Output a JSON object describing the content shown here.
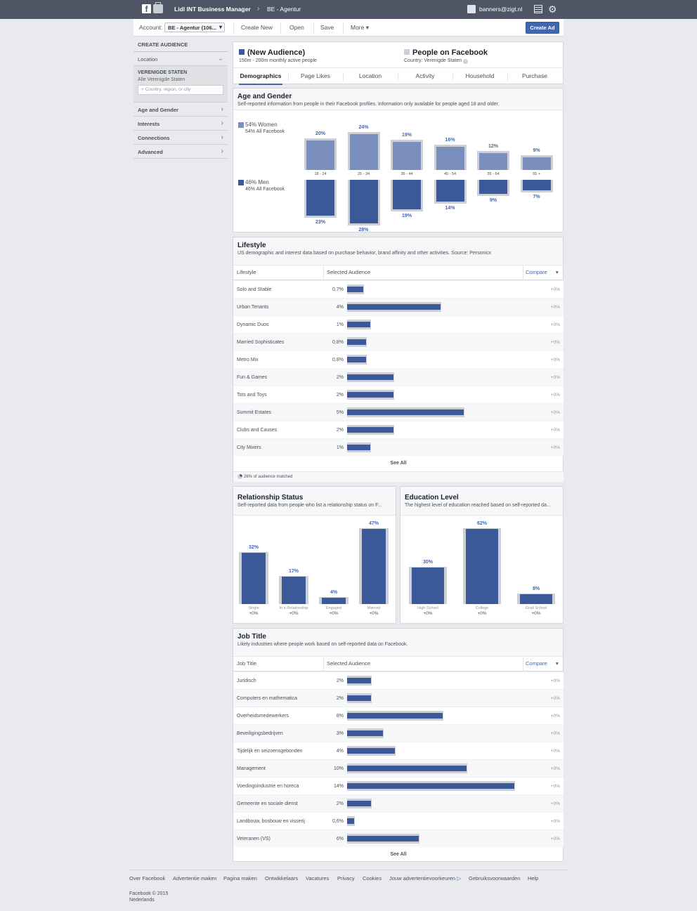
{
  "topbar": {
    "app_title": "Lidl INT Business Manager",
    "account": "BE - Agentur",
    "email": "banners@zigt.nl"
  },
  "toolbar": {
    "account_label": "Account:",
    "account_value": "BE - Agentur (106...",
    "create_new": "Create New",
    "open": "Open",
    "save": "Save",
    "more": "More ▾",
    "create_ad": "Create Ad"
  },
  "sidebar": {
    "header": "CREATE AUDIENCE",
    "location": "Location",
    "country": "VERENIGDE STATEN",
    "all_country": "Alle Verenigde Staten",
    "country_placeholder": "Country, region, or city",
    "age_gender": "Age and Gender",
    "interests": "Interests",
    "connections": "Connections",
    "advanced": "Advanced"
  },
  "header": {
    "audience_name": "(New Audience)",
    "audience_sub": "150m - 200m monthly active people",
    "compare_name": "People on Facebook",
    "compare_sub": "Country: Verenigde Staten",
    "tabs": [
      "Demographics",
      "Page Likes",
      "Location",
      "Activity",
      "Household",
      "Purchase"
    ]
  },
  "age_gender": {
    "title": "Age and Gender",
    "subtitle": "Self-reported information from people in their Facebook profiles. Information only available for people aged 18 and older.",
    "women_label": "54% Women",
    "women_sub": "54% All Facebook",
    "men_label": "46% Men",
    "men_sub": "46% All Facebook",
    "colors": {
      "women": "#7b8fbe",
      "men": "#3b5998",
      "compare": "#ccd0d5"
    },
    "chart_data": {
      "type": "bar",
      "categories": [
        "18 - 24",
        "25 - 34",
        "35 - 44",
        "45 - 54",
        "55 - 64",
        "65 +"
      ],
      "series": [
        {
          "name": "Women",
          "values": [
            20,
            24,
            19,
            16,
            12,
            9
          ],
          "labels": [
            "20%",
            "24%",
            "19%",
            "16%",
            "12%",
            "9%"
          ]
        },
        {
          "name": "Men",
          "values": [
            23,
            28,
            19,
            14,
            9,
            7
          ],
          "labels": [
            "23%",
            "28%",
            "19%",
            "14%",
            "9%",
            "7%"
          ]
        }
      ]
    }
  },
  "lifestyle": {
    "title": "Lifestyle",
    "subtitle": "US demographic and interest data based on purchase behavior, brand affinity and other activities. Source: Personicx",
    "col1": "Lifestyle",
    "col2": "Selected Audience",
    "col3": "Compare",
    "see_all": "See All",
    "matched": "26% of audience matched",
    "rows": [
      {
        "name": "Solo and Stable",
        "pct": "0,7%",
        "val": 0.7,
        "cmp": "+0%"
      },
      {
        "name": "Urban Tenants",
        "pct": "4%",
        "val": 4,
        "cmp": "+0%"
      },
      {
        "name": "Dynamic Duos",
        "pct": "1%",
        "val": 1,
        "cmp": "+0%"
      },
      {
        "name": "Married Sophisticates",
        "pct": "0,8%",
        "val": 0.8,
        "cmp": "+0%"
      },
      {
        "name": "Metro Mix",
        "pct": "0,8%",
        "val": 0.8,
        "cmp": "+0%"
      },
      {
        "name": "Fun & Games",
        "pct": "2%",
        "val": 2,
        "cmp": "+0%"
      },
      {
        "name": "Tots and Toys",
        "pct": "2%",
        "val": 2,
        "cmp": "+0%"
      },
      {
        "name": "Summit Estates",
        "pct": "5%",
        "val": 5,
        "cmp": "+0%"
      },
      {
        "name": "Clubs and Causes",
        "pct": "2%",
        "val": 2,
        "cmp": "+0%"
      },
      {
        "name": "City Mixers",
        "pct": "1%",
        "val": 1,
        "cmp": "+0%"
      }
    ]
  },
  "relationship": {
    "title": "Relationship Status",
    "subtitle": "Self-reported data from people who list a relationship status on F...",
    "chart_data": {
      "type": "bar",
      "categories": [
        "Single",
        "In a Relationship",
        "Engaged",
        "Married"
      ],
      "values": [
        32,
        17,
        4,
        47
      ],
      "labels": [
        "32%",
        "17%",
        "4%",
        "47%"
      ],
      "compare": [
        "+0%",
        "+0%",
        "+0%",
        "+0%"
      ]
    }
  },
  "education": {
    "title": "Education Level",
    "subtitle": "The highest level of education reached based on self-reported da...",
    "chart_data": {
      "type": "bar",
      "categories": [
        "High School",
        "College",
        "Grad School"
      ],
      "values": [
        30,
        62,
        8
      ],
      "labels": [
        "30%",
        "62%",
        "8%"
      ],
      "compare": [
        "+0%",
        "+0%",
        "+0%"
      ]
    }
  },
  "job": {
    "title": "Job Title",
    "subtitle": "Likely industries where people work based on self-reported data on Facebook.",
    "col1": "Job Title",
    "col2": "Selected Audience",
    "col3": "Compare",
    "see_all": "See All",
    "rows": [
      {
        "name": "Juridisch",
        "pct": "2%",
        "val": 2,
        "cmp": "+0%"
      },
      {
        "name": "Computers en mathematica",
        "pct": "2%",
        "val": 2,
        "cmp": "+0%"
      },
      {
        "name": "Overheidsmedewerkers",
        "pct": "8%",
        "val": 8,
        "cmp": "+0%"
      },
      {
        "name": "Beveiligingsbedrijven",
        "pct": "3%",
        "val": 3,
        "cmp": "+0%"
      },
      {
        "name": "Tijdelijk en seizoensgebonden",
        "pct": "4%",
        "val": 4,
        "cmp": "+0%"
      },
      {
        "name": "Management",
        "pct": "10%",
        "val": 10,
        "cmp": "+0%"
      },
      {
        "name": "Voedingsindustrie en horeca",
        "pct": "14%",
        "val": 14,
        "cmp": "+0%"
      },
      {
        "name": "Gemeente en sociale dienst",
        "pct": "2%",
        "val": 2,
        "cmp": "+0%"
      },
      {
        "name": "Landbouw, bosbouw en visserij",
        "pct": "0,6%",
        "val": 0.6,
        "cmp": "+0%"
      },
      {
        "name": "Veteranen (VS)",
        "pct": "6%",
        "val": 6,
        "cmp": "+0%"
      }
    ]
  },
  "footer": {
    "links": [
      "Over Facebook",
      "Advertentie maken",
      "Pagina maken",
      "Ontwikkelaars",
      "Vacatures",
      "Privacy",
      "Cookies",
      "Jouw advertentievoorkeuren",
      "Gebruiksvoorwaarden",
      "Help"
    ],
    "copyright": "Facebook © 2015",
    "language": "Nederlands"
  }
}
